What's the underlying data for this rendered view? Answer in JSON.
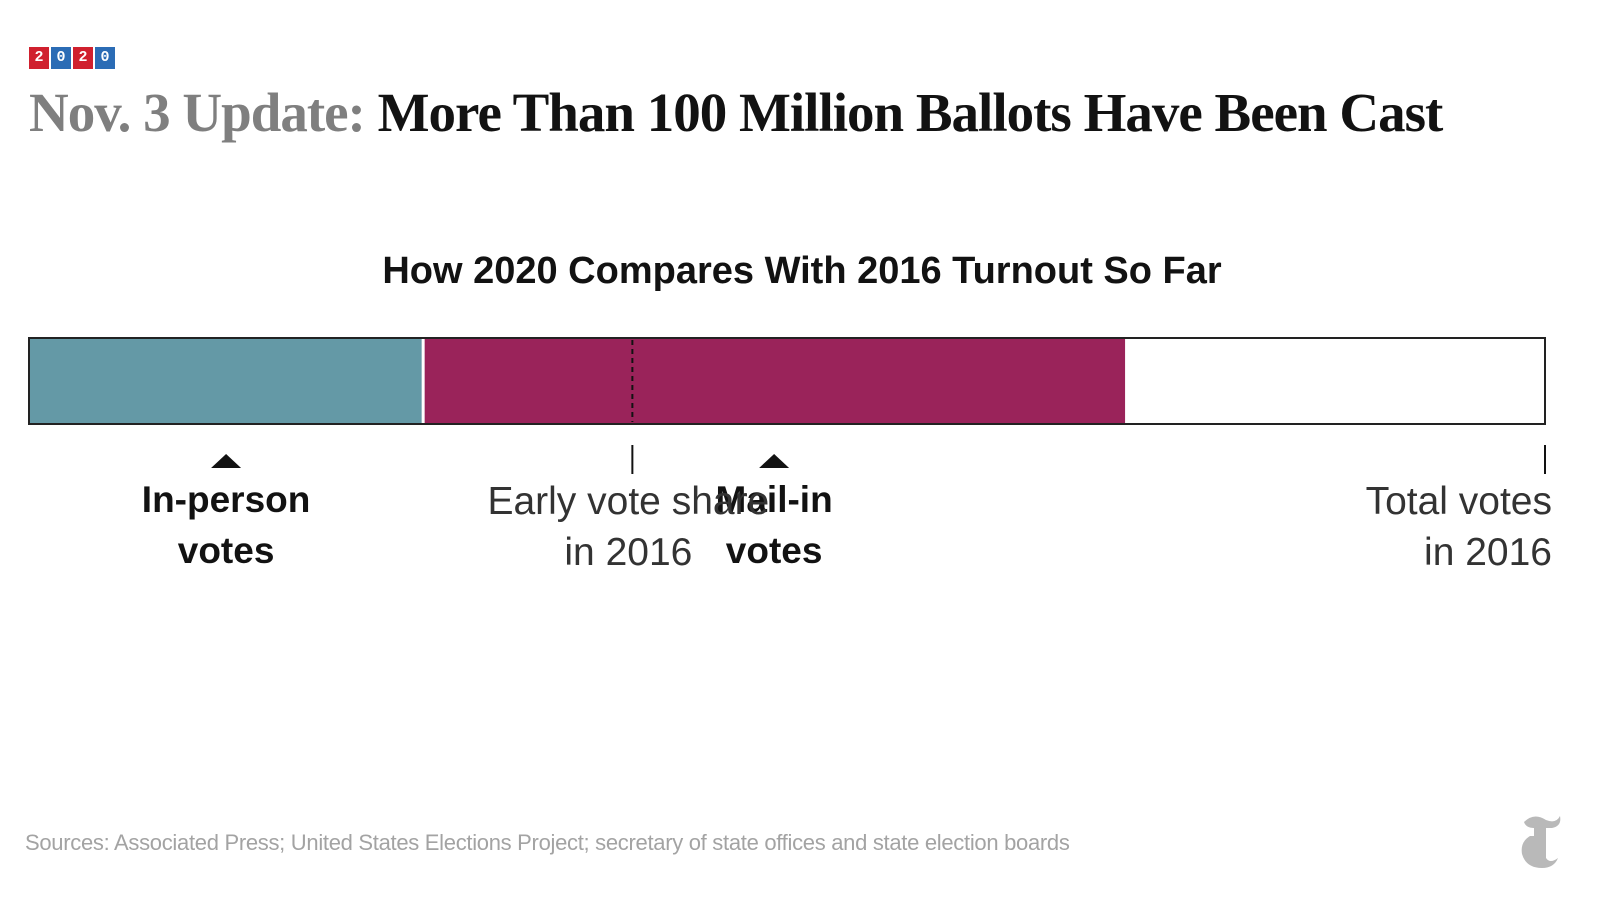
{
  "badge": {
    "digits": [
      "2",
      "0",
      "2",
      "0"
    ],
    "colors": [
      "#d0202e",
      "#2b6cb5",
      "#d0202e",
      "#2b6cb5"
    ]
  },
  "headline": {
    "kicker": "Nov. 3 Update:",
    "main": "More Than 100 Million Ballots Have Been Cast"
  },
  "chart_data": {
    "type": "bar",
    "orientation": "horizontal-stacked",
    "title": "How 2020 Compares With 2016 Turnout So Far",
    "xlim": [
      0,
      1
    ],
    "segments": [
      {
        "label": "In-person votes",
        "start": 0.0,
        "end": 0.26,
        "color": "#6499a6"
      },
      {
        "label": "Mail-in votes",
        "start": 0.26,
        "end": 0.723,
        "color": "#9a235a"
      }
    ],
    "reference_markers": [
      {
        "label": "Early vote share in 2016",
        "value": 0.398,
        "dashed_in_bar": true
      },
      {
        "label": "Total votes in 2016",
        "value": 1.0,
        "dashed_in_bar": false
      }
    ]
  },
  "sources": "Sources: Associated Press; United States Elections Project; secretary of state offices and state election boards",
  "logo": {
    "icon": "nyt-t-logo-icon"
  }
}
